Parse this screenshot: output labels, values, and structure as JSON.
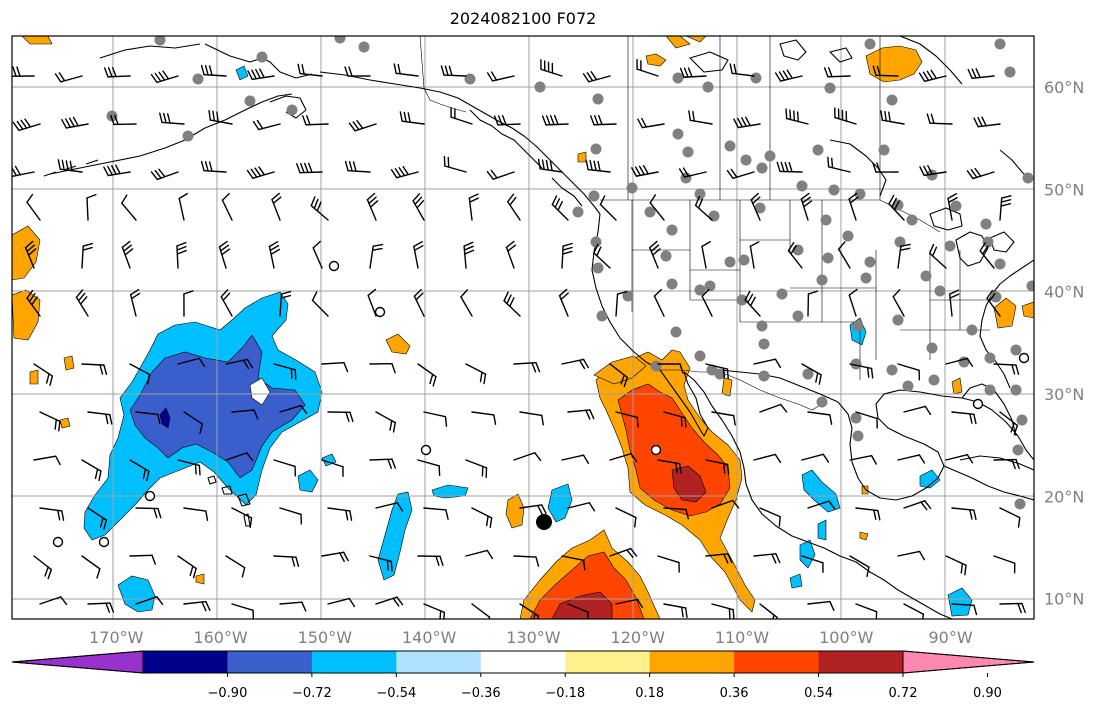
{
  "title": "2024082100 F072",
  "map": {
    "lon_range": [
      -180,
      -82
    ],
    "lat_range": [
      8,
      65
    ],
    "latitude_labels": [
      {
        "lat": 60,
        "text": "60°N"
      },
      {
        "lat": 50,
        "text": "50°N"
      },
      {
        "lat": 40,
        "text": "40°N"
      },
      {
        "lat": 30,
        "text": "30°N"
      },
      {
        "lat": 20,
        "text": "20°N"
      },
      {
        "lat": 10,
        "text": "10°N"
      }
    ],
    "longitude_labels": [
      {
        "lon": -170,
        "text": "170°W"
      },
      {
        "lon": -160,
        "text": "160°W"
      },
      {
        "lon": -150,
        "text": "150°W"
      },
      {
        "lon": -140,
        "text": "140°W"
      },
      {
        "lon": -130,
        "text": "130°W"
      },
      {
        "lon": -120,
        "text": "120°W"
      },
      {
        "lon": -110,
        "text": "110°W"
      },
      {
        "lon": -100,
        "text": "100°W"
      },
      {
        "lon": -90,
        "text": "90°W"
      }
    ],
    "grid": true,
    "colors": {
      "land_outline": "#000000",
      "gridline": "#a0a0a0",
      "station_dot": "#808080",
      "marker": "#000000"
    }
  },
  "colorbar": {
    "colors": [
      "#9932cc",
      "#00008b",
      "#3a5fcd",
      "#00bfff",
      "#b0e2ff",
      "#ffffff",
      "#fff08c",
      "#ffa500",
      "#ff4500",
      "#b22222",
      "#ff88b0"
    ],
    "tick_labels": [
      "−0.90",
      "−0.72",
      "−0.54",
      "−0.36",
      "−0.18",
      "0.18",
      "0.36",
      "0.54",
      "0.72",
      "0.90"
    ],
    "extend": "both"
  }
}
